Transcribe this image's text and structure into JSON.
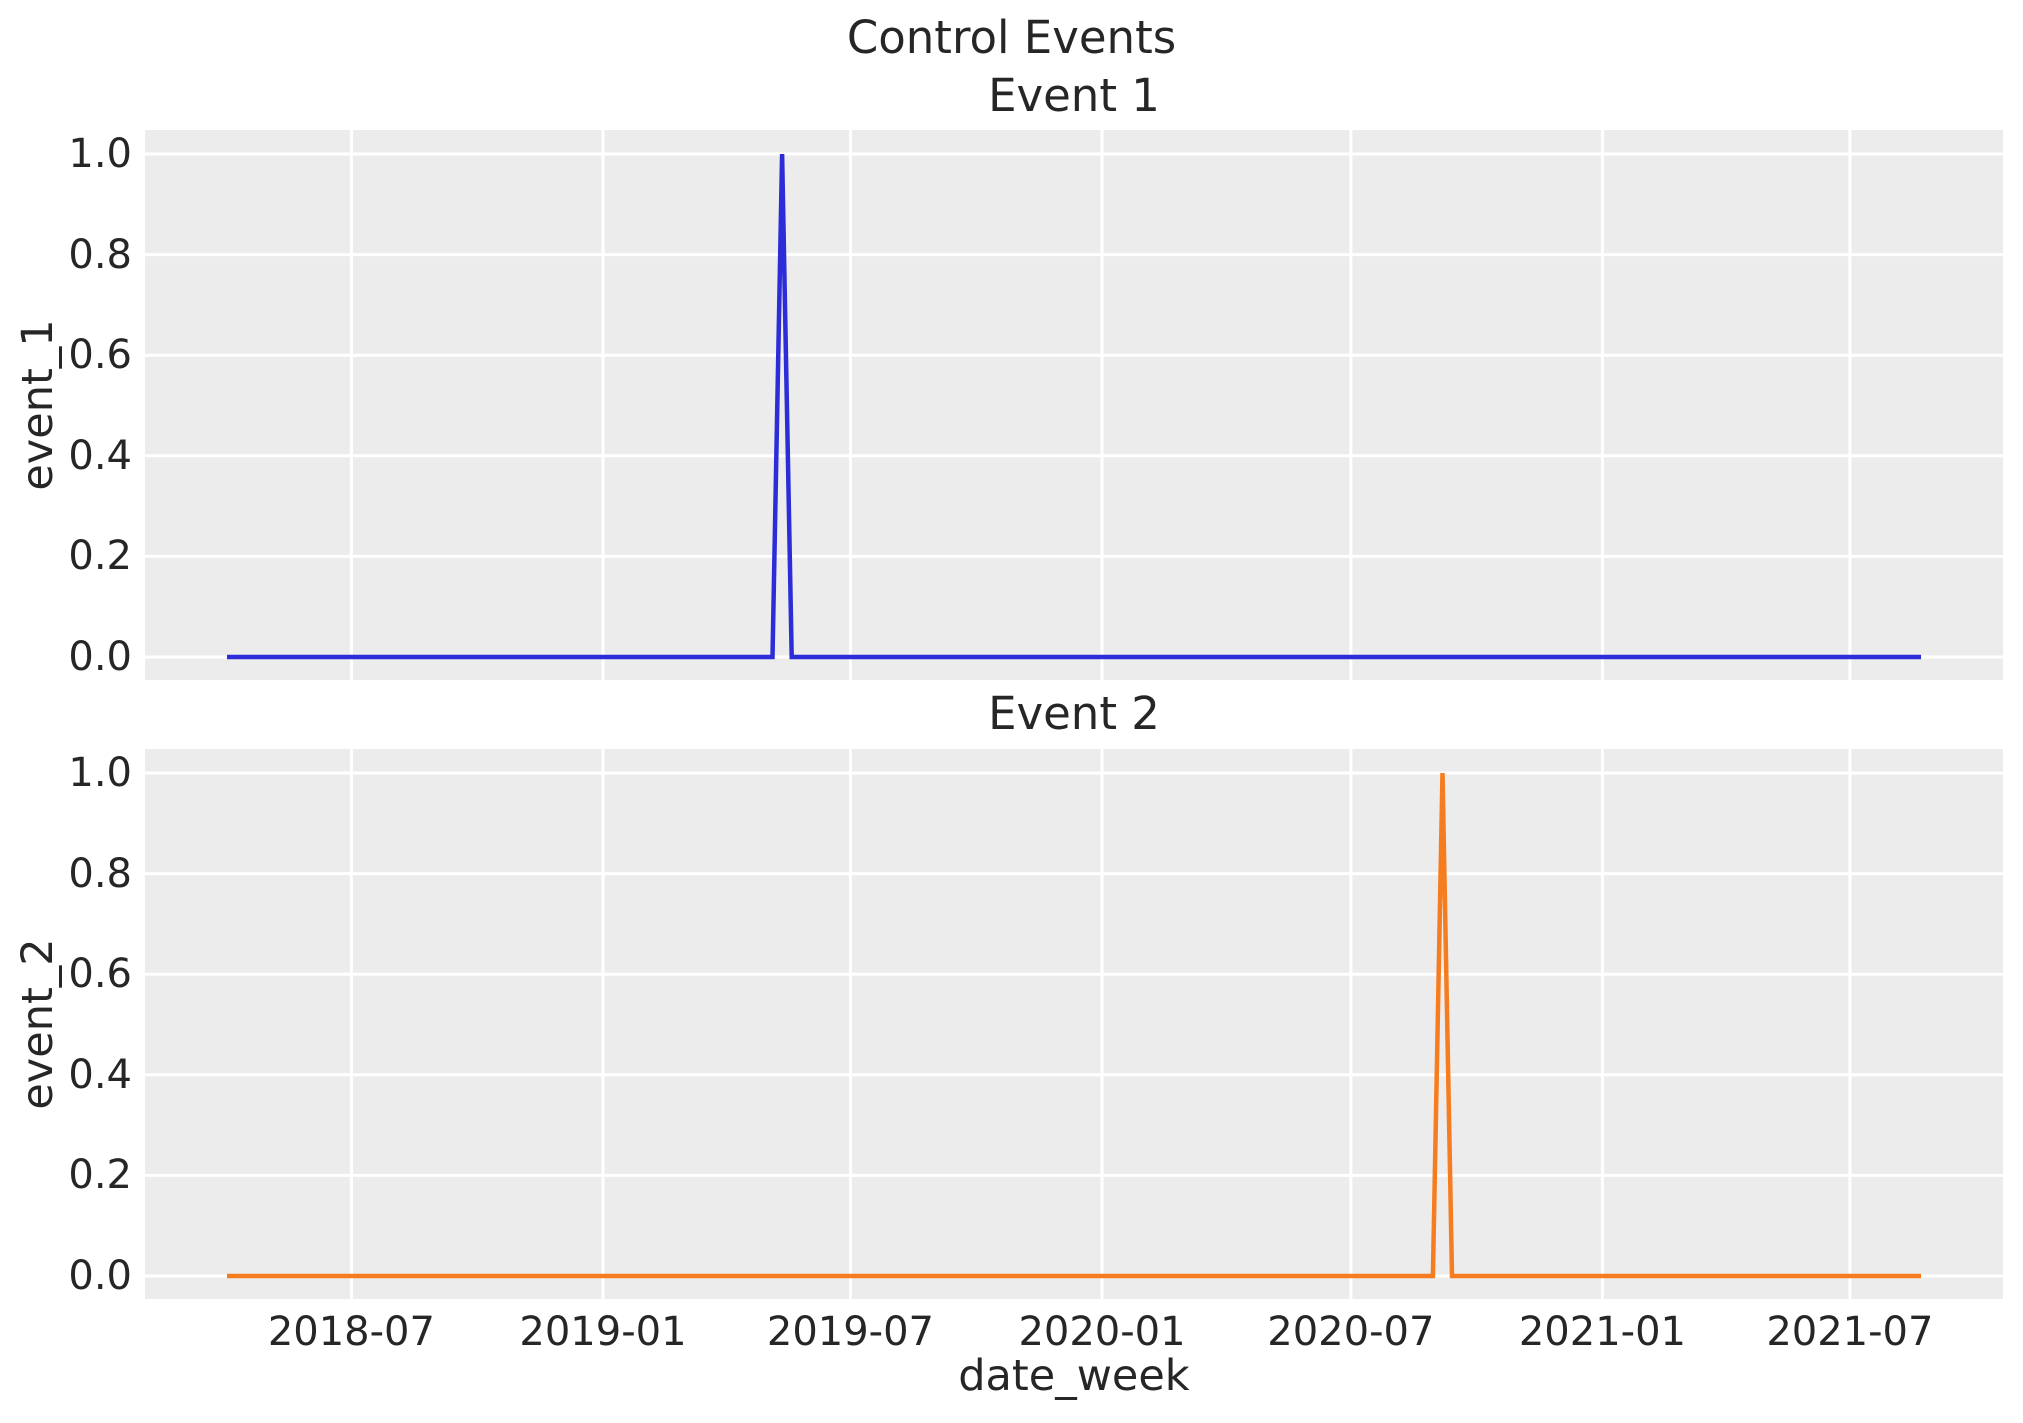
{
  "figure": {
    "suptitle": "Control Events",
    "xlabel": "date_week"
  },
  "colors": {
    "background": "#ffffff",
    "plot_background": "#ececec",
    "grid": "#ffffff",
    "text": "#262626",
    "event_1_line": "#2c2cd8",
    "event_2_line": "#f57d1f"
  },
  "x_axis": {
    "label": "date_week",
    "ticks": [
      {
        "label": "2018-07",
        "date": "2018-07-01"
      },
      {
        "label": "2019-01",
        "date": "2019-01-01"
      },
      {
        "label": "2019-07",
        "date": "2019-07-01"
      },
      {
        "label": "2020-01",
        "date": "2020-01-01"
      },
      {
        "label": "2020-07",
        "date": "2020-07-01"
      },
      {
        "label": "2021-01",
        "date": "2021-01-01"
      },
      {
        "label": "2021-07",
        "date": "2021-07-01"
      }
    ]
  },
  "y_axis": {
    "ticks": [
      {
        "label": "0.0",
        "value": 0.0
      },
      {
        "label": "0.2",
        "value": 0.2
      },
      {
        "label": "0.4",
        "value": 0.4
      },
      {
        "label": "0.6",
        "value": 0.6
      },
      {
        "label": "0.8",
        "value": 0.8
      },
      {
        "label": "1.0",
        "value": 1.0
      }
    ]
  },
  "chart_data": [
    {
      "type": "line",
      "title": "Event 1",
      "xlabel": "",
      "ylabel": "event_1",
      "grid": true,
      "legend": false,
      "color": "#2c2cd8",
      "x_start": "2018-04-01",
      "x_end": "2021-08-22",
      "frequency": "weekly",
      "baseline_value": 0,
      "spike": {
        "date": "2019-05-12",
        "value": 1.0
      },
      "points": [
        [
          "2018-04-01",
          0
        ],
        [
          "2019-05-05",
          0
        ],
        [
          "2019-05-12",
          1
        ],
        [
          "2019-05-19",
          0
        ],
        [
          "2021-08-22",
          0
        ]
      ],
      "ylim": [
        -0.048,
        1.048
      ],
      "yticks": [
        0.0,
        0.2,
        0.4,
        0.6,
        0.8,
        1.0
      ],
      "xticks": [
        "2018-07",
        "2019-01",
        "2019-07",
        "2020-01",
        "2020-07",
        "2021-01",
        "2021-07"
      ]
    },
    {
      "type": "line",
      "title": "Event 2",
      "xlabel": "date_week",
      "ylabel": "event_2",
      "grid": true,
      "legend": false,
      "color": "#f57d1f",
      "x_start": "2018-04-01",
      "x_end": "2021-08-22",
      "frequency": "weekly",
      "baseline_value": 0,
      "spike": {
        "date": "2020-09-06",
        "value": 1.0
      },
      "points": [
        [
          "2018-04-01",
          0
        ],
        [
          "2020-08-30",
          0
        ],
        [
          "2020-09-06",
          1
        ],
        [
          "2020-09-13",
          0
        ],
        [
          "2021-08-22",
          0
        ]
      ],
      "ylim": [
        -0.048,
        1.048
      ],
      "yticks": [
        0.0,
        0.2,
        0.4,
        0.6,
        0.8,
        1.0
      ],
      "xticks": [
        "2018-07",
        "2019-01",
        "2019-07",
        "2020-01",
        "2020-07",
        "2021-01",
        "2021-07"
      ]
    }
  ]
}
